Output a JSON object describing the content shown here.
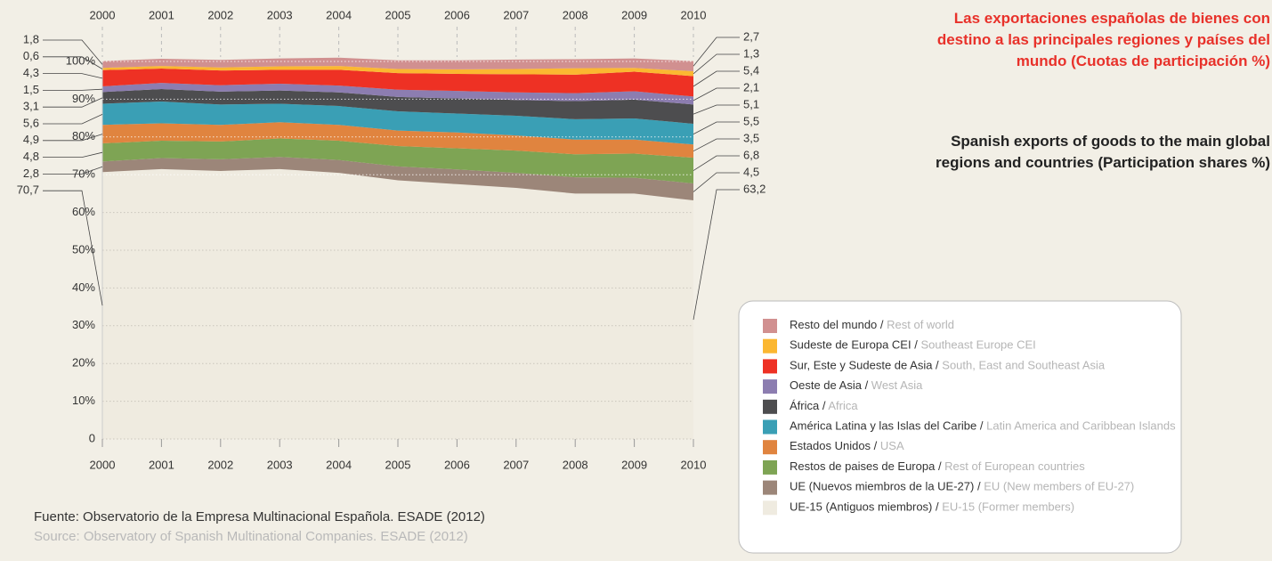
{
  "chart_data": {
    "type": "stacked_area",
    "title_es": "Las exportaciones españolas de bienes con destino a las principales regiones y países del mundo (Cuotas de participación %)",
    "title_en": "Spanish exports of goods to the main global regions and countries (Participation shares %)",
    "source_es": "Fuente: Observatorio de la Empresa Multinacional Española. ESADE (2012)",
    "source_en": "Source: Observatory of Spanish Multinational Companies. ESADE (2012)",
    "categories": [
      "2000",
      "2001",
      "2002",
      "2003",
      "2004",
      "2005",
      "2006",
      "2007",
      "2008",
      "2009",
      "2010"
    ],
    "ylim": [
      0,
      100
    ],
    "yticks": [
      0,
      {
        "value": 10,
        "label": "10%"
      },
      {
        "value": 20,
        "label": "20%"
      },
      {
        "value": 30,
        "label": "30%"
      },
      {
        "value": 40,
        "label": "40%"
      },
      {
        "value": 50,
        "label": "50%"
      },
      {
        "value": 60,
        "label": "60%"
      },
      {
        "value": 70,
        "label": "70%"
      },
      {
        "value": 80,
        "label": "80%"
      },
      {
        "value": 90,
        "label": "90%"
      },
      {
        "value": 100,
        "label": "100%"
      }
    ],
    "grid": true,
    "series": [
      {
        "name": "Resto del mundo",
        "name_en": "Rest of world",
        "color": "#d19090",
        "values": [
          1.8,
          1.9,
          2.0,
          2.1,
          2.2,
          2.3,
          2.4,
          2.5,
          2.4,
          2.5,
          2.7
        ],
        "value_labels": [
          "1,8",
          null,
          null,
          null,
          null,
          null,
          null,
          null,
          null,
          null,
          "2,7"
        ]
      },
      {
        "name": "Sudeste de Europa CEI",
        "name_en": "Southeast Europe CEI",
        "color": "#fbb731",
        "values": [
          0.6,
          0.7,
          0.8,
          0.9,
          1.0,
          1.1,
          1.2,
          1.4,
          1.7,
          1.0,
          1.3
        ],
        "value_labels": [
          "0,6",
          null,
          null,
          null,
          null,
          null,
          null,
          null,
          null,
          null,
          "1,3"
        ]
      },
      {
        "name": "Sur, Este y Sudeste de Asia",
        "name_en": "South, East and Southeast Asia",
        "color": "#ee3124",
        "values": [
          4.3,
          3.8,
          3.9,
          3.7,
          4.2,
          4.4,
          4.5,
          4.8,
          4.9,
          5.2,
          5.4
        ],
        "value_labels": [
          "4,3",
          null,
          null,
          null,
          null,
          null,
          null,
          null,
          null,
          null,
          "5,4"
        ]
      },
      {
        "name": "Oeste de Asia",
        "name_en": "West Asia",
        "color": "#8c7db0",
        "values": [
          1.5,
          1.6,
          1.7,
          1.8,
          1.8,
          1.9,
          2.0,
          2.0,
          2.1,
          2.2,
          2.1
        ],
        "value_labels": [
          "1,5",
          null,
          null,
          null,
          null,
          null,
          null,
          null,
          null,
          null,
          "2,1"
        ]
      },
      {
        "name": "África",
        "name_en": "Africa",
        "color": "#4d4d4f",
        "values": [
          3.1,
          3.3,
          3.4,
          3.5,
          3.6,
          3.8,
          4.0,
          4.2,
          4.8,
          5.0,
          5.1
        ],
        "value_labels": [
          "3,1",
          null,
          null,
          null,
          null,
          null,
          null,
          null,
          null,
          null,
          "5,1"
        ]
      },
      {
        "name": "América Latina y las Islas del Caribe",
        "name_en": "Latin America and Caribbean Islands",
        "color": "#3a9fb5",
        "values": [
          5.6,
          5.8,
          5.4,
          4.9,
          5.0,
          5.1,
          5.0,
          5.2,
          5.4,
          5.6,
          5.5
        ],
        "value_labels": [
          "5,6",
          null,
          null,
          null,
          null,
          null,
          null,
          null,
          null,
          null,
          "5,5"
        ]
      },
      {
        "name": "Estados Unidos",
        "name_en": "USA",
        "color": "#e0843f",
        "values": [
          4.9,
          4.6,
          4.4,
          4.3,
          4.2,
          4.1,
          4.2,
          4.0,
          3.9,
          3.7,
          3.5
        ],
        "value_labels": [
          "4,9",
          null,
          null,
          null,
          null,
          null,
          null,
          null,
          null,
          null,
          "3,5"
        ]
      },
      {
        "name": "Restos de paises de Europa",
        "name_en": "Rest of European countries",
        "color": "#7ea454",
        "values": [
          4.8,
          4.6,
          4.7,
          4.9,
          5.1,
          5.4,
          5.6,
          5.9,
          6.1,
          6.4,
          6.8
        ],
        "value_labels": [
          "4,8",
          null,
          null,
          null,
          null,
          null,
          null,
          null,
          null,
          null,
          "6,8"
        ]
      },
      {
        "name": "UE (Nuevos miembros de la UE-27)",
        "name_en": "EU (New members of EU-27)",
        "color": "#9c8679",
        "values": [
          2.8,
          2.9,
          3.1,
          3.2,
          3.4,
          3.7,
          3.9,
          4.0,
          4.3,
          4.2,
          4.5
        ],
        "value_labels": [
          "2,8",
          null,
          null,
          null,
          null,
          null,
          null,
          null,
          null,
          null,
          "4,5"
        ]
      },
      {
        "name": "UE-15 (Antiguos miembros)",
        "name_en": "EU-15 (Former members)",
        "color": "#efebe0",
        "values": [
          70.7,
          71.5,
          71.0,
          71.5,
          70.5,
          68.5,
          67.5,
          66.5,
          65.0,
          65.0,
          63.2
        ],
        "value_labels": [
          "70,7",
          null,
          null,
          null,
          null,
          null,
          null,
          null,
          null,
          null,
          "63,2"
        ]
      }
    ]
  }
}
